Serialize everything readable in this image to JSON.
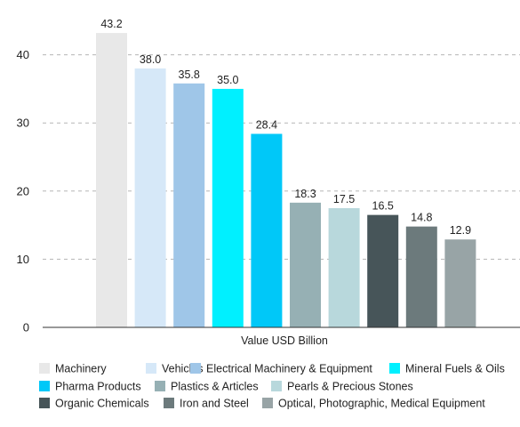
{
  "chart_data": {
    "type": "bar",
    "xlabel": "Value USD Billion",
    "ylabel": "",
    "ylim": [
      0,
      47
    ],
    "yticks": [
      0,
      10,
      20,
      30,
      40
    ],
    "grid": "horizontal dashed",
    "legend_position": "bottom",
    "series": [
      {
        "name": "Machinery",
        "value": 43.2,
        "color": "#e8e8e8"
      },
      {
        "name": "Vehicles",
        "value": 38.0,
        "color": "#d6e8f8"
      },
      {
        "name": "Electrical Machinery & Equipment",
        "value": 35.8,
        "color": "#9fc6e8"
      },
      {
        "name": "Mineral Fuels & Oils",
        "value": 35.0,
        "color": "#00f0ff"
      },
      {
        "name": "Pharma Products",
        "value": 28.4,
        "color": "#00c8f8"
      },
      {
        "name": "Plastics & Articles",
        "value": 18.3,
        "color": "#96b0b4"
      },
      {
        "name": "Pearls & Precious Stones",
        "value": 17.5,
        "color": "#b8d8dc"
      },
      {
        "name": "Organic Chemicals",
        "value": 16.5,
        "color": "#475559"
      },
      {
        "name": "Iron and Steel",
        "value": 14.8,
        "color": "#6c7a7c"
      },
      {
        "name": "Optical, Photographic, Medical Equipment",
        "value": 12.9,
        "color": "#98a4a6"
      }
    ]
  }
}
